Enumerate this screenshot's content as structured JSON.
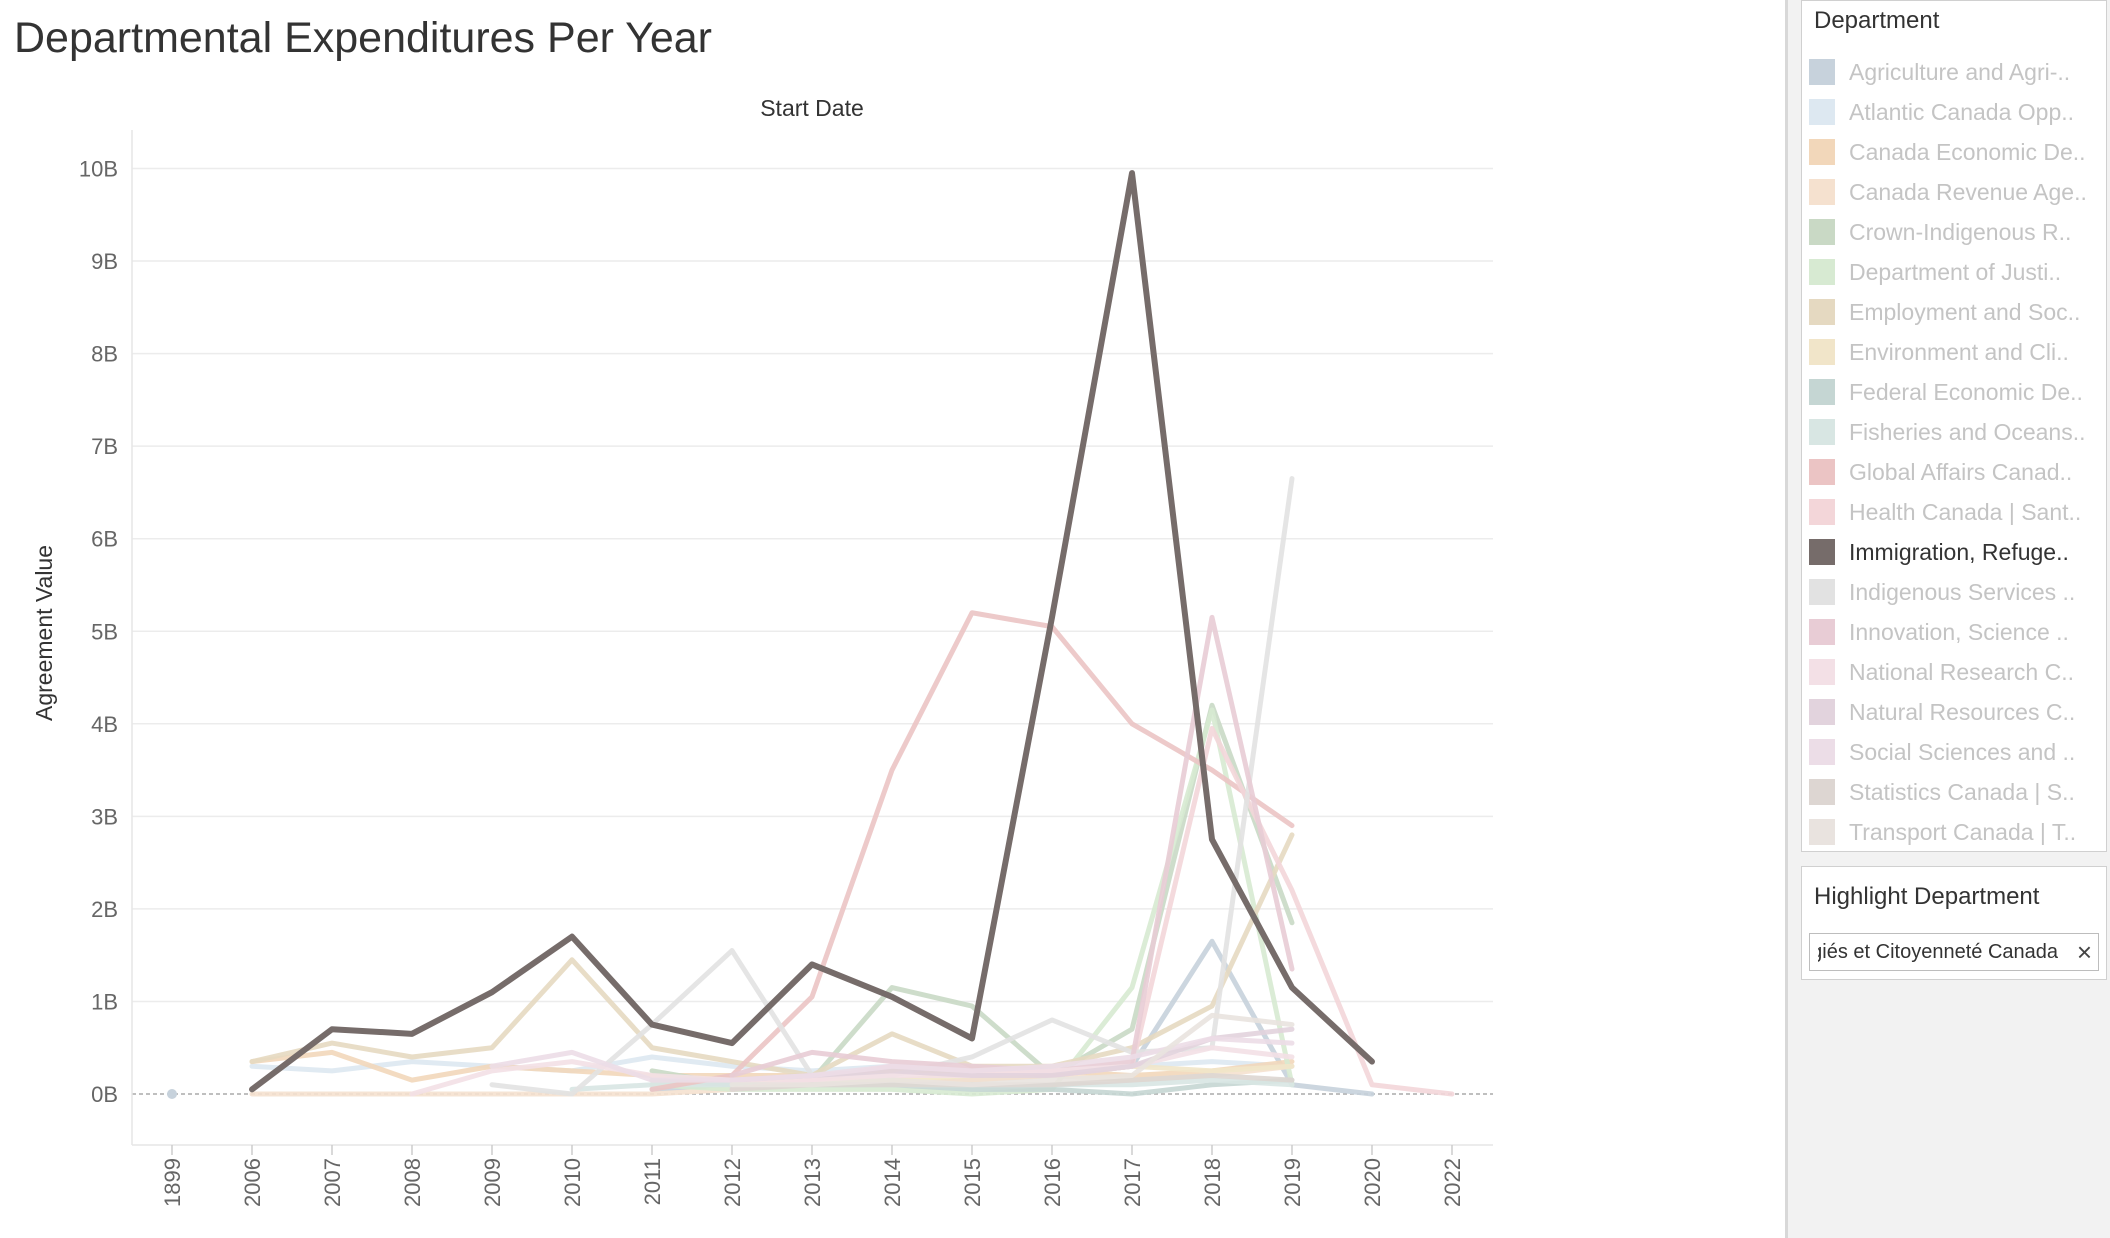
{
  "page": {
    "title": "Departmental Expenditures Per Year"
  },
  "chart_data": {
    "type": "line",
    "title": "Departmental Expenditures Per Year",
    "xlabel": "Start Date",
    "ylabel": "Agreement Value",
    "categories": [
      "1899",
      "2006",
      "2007",
      "2008",
      "2009",
      "2010",
      "2011",
      "2012",
      "2013",
      "2014",
      "2015",
      "2016",
      "2017",
      "2018",
      "2019",
      "2020",
      "2022"
    ],
    "y_ticks": [
      {
        "value": 0,
        "label": "0B"
      },
      {
        "value": 1,
        "label": "1B"
      },
      {
        "value": 2,
        "label": "2B"
      },
      {
        "value": 3,
        "label": "3B"
      },
      {
        "value": 4,
        "label": "4B"
      },
      {
        "value": 5,
        "label": "5B"
      },
      {
        "value": 6,
        "label": "6B"
      },
      {
        "value": 7,
        "label": "7B"
      },
      {
        "value": 8,
        "label": "8B"
      },
      {
        "value": 9,
        "label": "9B"
      },
      {
        "value": 10,
        "label": "10B"
      }
    ],
    "ylim": [
      -0.55,
      10.45
    ],
    "units": "billions",
    "grid": true,
    "legend_position": "right",
    "highlighted_series": "Immigration, Refuge..",
    "series": [
      {
        "name": "Agriculture and Agri-..",
        "color": "#c7d2dc",
        "values": [
          0,
          null,
          null,
          null,
          null,
          null,
          0.05,
          0.1,
          0.1,
          0.1,
          0.15,
          0.2,
          0.3,
          1.65,
          0.1,
          0,
          null
        ]
      },
      {
        "name": "Atlantic Canada Opp..",
        "color": "#dde8f1",
        "values": [
          null,
          0.3,
          0.25,
          0.35,
          0.3,
          0.25,
          0.4,
          0.3,
          0.25,
          0.3,
          0.25,
          0.2,
          0.3,
          0.35,
          0.3,
          null,
          null
        ]
      },
      {
        "name": "Canada Economic De..",
        "color": "#f2d7ba",
        "values": [
          null,
          0.35,
          0.45,
          0.15,
          0.3,
          0.25,
          0.2,
          0.2,
          0.2,
          0.25,
          0.2,
          0.25,
          0.2,
          0.25,
          0.35,
          null,
          null
        ]
      },
      {
        "name": "Canada Revenue Age..",
        "color": "#f5e1cf",
        "values": [
          null,
          0,
          0,
          0,
          0,
          0,
          0,
          0.05,
          0.1,
          0.1,
          0.15,
          0.2,
          0.15,
          0.2,
          0.3,
          null,
          null
        ]
      },
      {
        "name": "Crown-Indigenous R..",
        "color": "#c9d9c5",
        "values": [
          null,
          null,
          null,
          null,
          null,
          null,
          0.25,
          0.1,
          0.15,
          1.15,
          0.95,
          0.2,
          0.7,
          4.2,
          1.85,
          null,
          null
        ]
      },
      {
        "name": "Department of Justi..",
        "color": "#d7ead2",
        "values": [
          null,
          null,
          null,
          null,
          null,
          null,
          0.1,
          0.05,
          0.05,
          0.05,
          0,
          0.05,
          1.15,
          4.15,
          0.1,
          null,
          null
        ]
      },
      {
        "name": "Employment and Soc..",
        "color": "#e5d9c1",
        "values": [
          null,
          0.35,
          0.55,
          0.4,
          0.5,
          1.45,
          0.5,
          0.35,
          0.2,
          0.65,
          0.3,
          0.3,
          0.5,
          0.95,
          2.8,
          null,
          null
        ]
      },
      {
        "name": "Environment and Cli..",
        "color": "#f1e5c9",
        "values": [
          null,
          null,
          null,
          null,
          null,
          null,
          null,
          0.1,
          0.15,
          0.15,
          0.2,
          0.2,
          0.3,
          0.25,
          0.3,
          null,
          null
        ]
      },
      {
        "name": "Federal Economic De..",
        "color": "#c5d6d3",
        "values": [
          null,
          null,
          null,
          null,
          null,
          null,
          0.15,
          0.1,
          0.1,
          0.1,
          0.05,
          0.05,
          0,
          0.1,
          0.15,
          null,
          null
        ]
      },
      {
        "name": "Fisheries and Oceans..",
        "color": "#d8e6e3",
        "values": [
          null,
          null,
          null,
          null,
          null,
          0.05,
          0.1,
          0.1,
          0.1,
          0.1,
          0.1,
          0.1,
          0.1,
          0.15,
          0.1,
          null,
          null
        ]
      },
      {
        "name": "Global Affairs Canad..",
        "color": "#ebc4c4",
        "values": [
          null,
          null,
          null,
          null,
          null,
          null,
          0.05,
          0.2,
          1.05,
          3.5,
          5.2,
          5.05,
          4,
          3.5,
          2.9,
          null,
          null
        ]
      },
      {
        "name": "Health Canada | Sant..",
        "color": "#f3d6d9",
        "values": [
          null,
          null,
          null,
          null,
          null,
          null,
          null,
          0.05,
          0.15,
          0.3,
          0.25,
          0.2,
          0.3,
          3.95,
          2.2,
          0.1,
          0
        ]
      },
      {
        "name": "Immigration, Refuge..",
        "color": "#766c6a",
        "values": [
          null,
          0.05,
          0.7,
          0.65,
          1.1,
          1.7,
          0.75,
          0.55,
          1.4,
          1.05,
          0.6,
          5.15,
          9.95,
          2.75,
          1.15,
          0.35,
          null
        ]
      },
      {
        "name": "Indigenous Services ..",
        "color": "#e2e2e2",
        "values": [
          null,
          null,
          null,
          null,
          0.1,
          0,
          0.75,
          1.55,
          0.2,
          0.2,
          0.4,
          0.8,
          0.45,
          0.5,
          6.65,
          null,
          null
        ]
      },
      {
        "name": "Innovation, Science ..",
        "color": "#e8ccd5",
        "values": [
          null,
          null,
          null,
          null,
          null,
          null,
          null,
          0.2,
          0.45,
          0.35,
          0.3,
          0.25,
          0.35,
          5.15,
          1.35,
          null,
          null
        ]
      },
      {
        "name": "National Research C..",
        "color": "#f3e0e6",
        "values": [
          null,
          null,
          null,
          0,
          0.25,
          0.35,
          0.2,
          0.15,
          0.15,
          0.2,
          0.2,
          0.25,
          0.3,
          0.5,
          0.4,
          null,
          null
        ]
      },
      {
        "name": "Natural Resources C..",
        "color": "#e2d3dd",
        "values": [
          null,
          null,
          null,
          null,
          null,
          null,
          null,
          0.15,
          0.2,
          0.25,
          0.2,
          0.2,
          0.3,
          0.6,
          0.7,
          null,
          null
        ]
      },
      {
        "name": "Social Sciences and ..",
        "color": "#ecdde7",
        "values": [
          null,
          null,
          null,
          null,
          0.3,
          0.45,
          0.15,
          0.15,
          0.2,
          0.3,
          0.25,
          0.3,
          0.4,
          0.6,
          0.55,
          null,
          null
        ]
      },
      {
        "name": "Statistics Canada | S..",
        "color": "#ddd6d2",
        "values": [
          null,
          null,
          null,
          null,
          null,
          null,
          null,
          0.05,
          0.1,
          0.1,
          0.1,
          0.1,
          0.15,
          0.2,
          0.15,
          null,
          null
        ]
      },
      {
        "name": "Transport Canada | T..",
        "color": "#e9e3df",
        "values": [
          null,
          null,
          null,
          null,
          null,
          null,
          null,
          0.1,
          0.1,
          0.15,
          0.1,
          0.15,
          0.2,
          0.85,
          0.75,
          null,
          null
        ]
      }
    ]
  },
  "legend": {
    "title": "Department"
  },
  "highlight": {
    "title": "Highlight Department",
    "value": "Immigration, Réfugiés et Citoyenneté Canada",
    "clear_icon": "×"
  }
}
